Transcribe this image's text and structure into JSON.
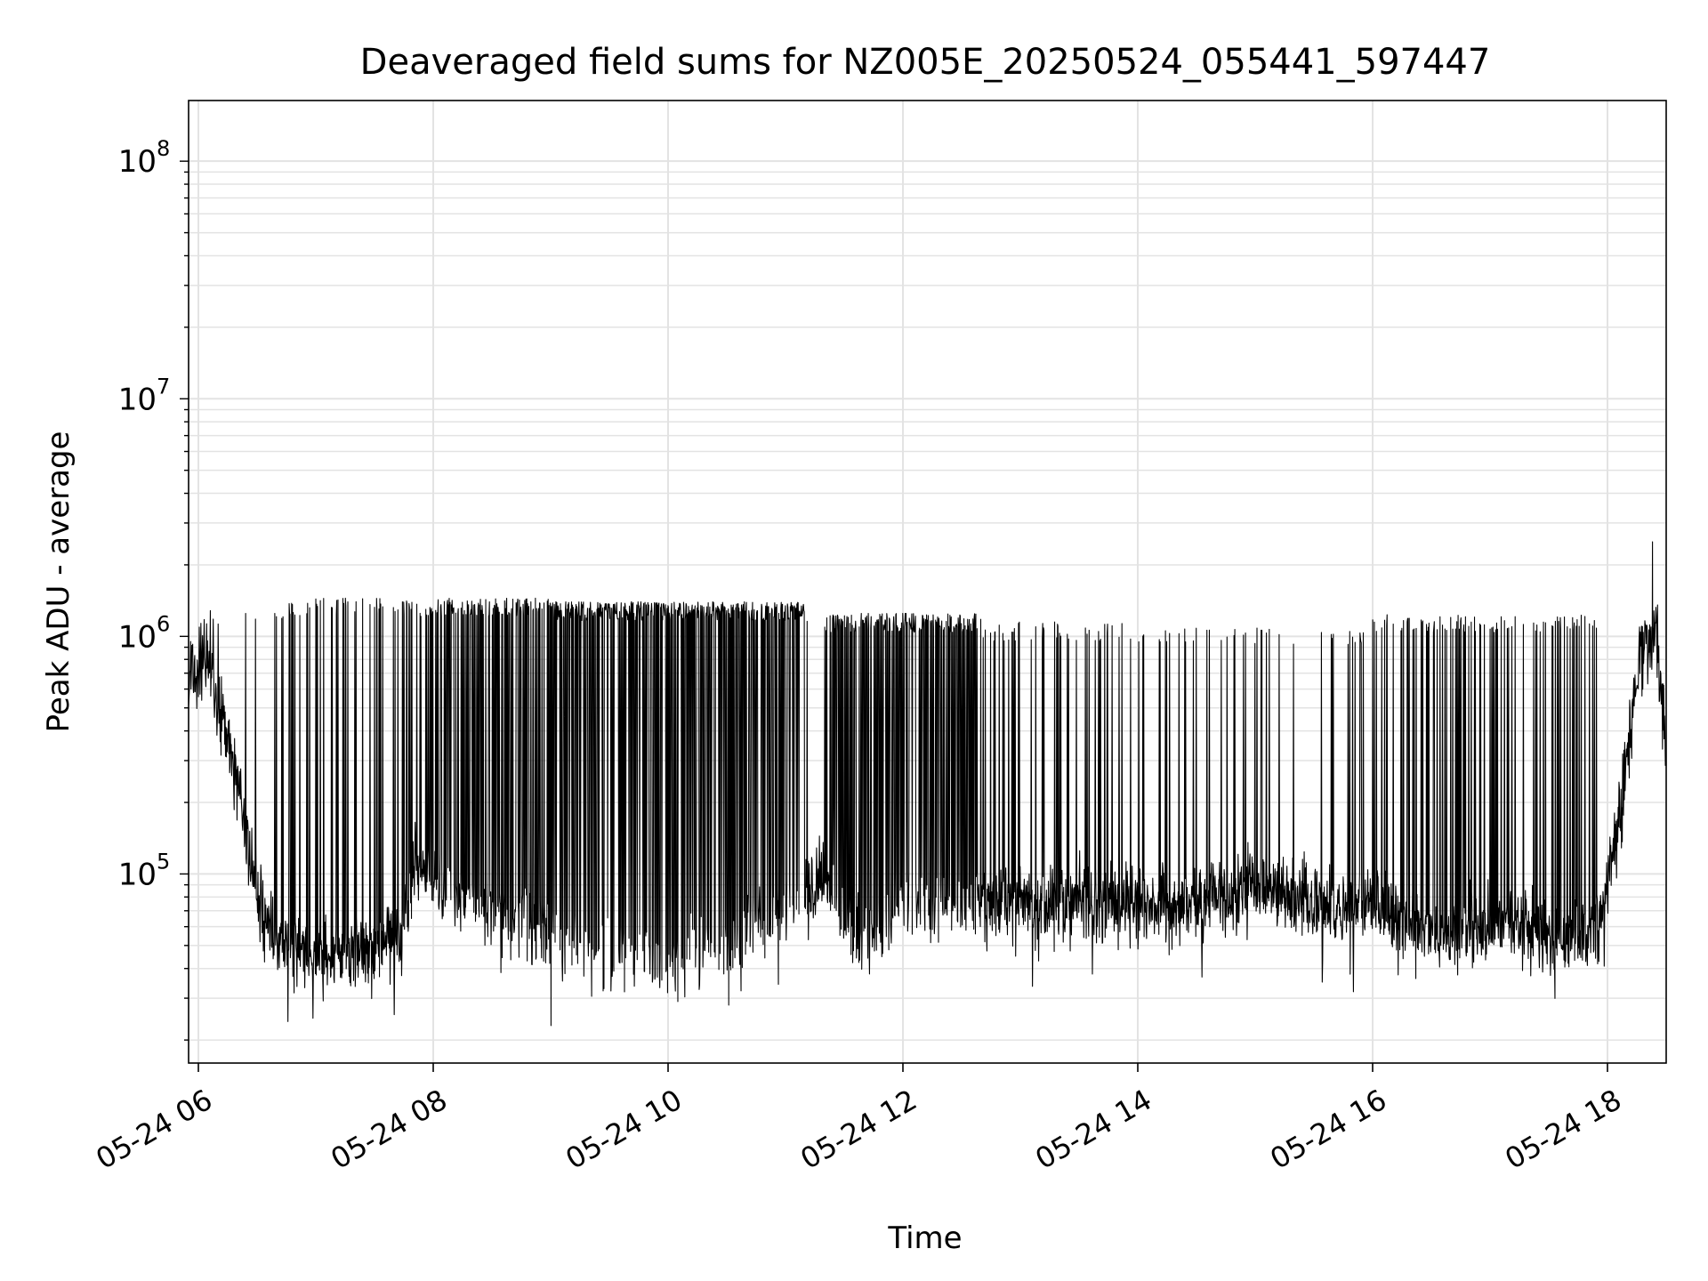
{
  "chart_data": {
    "type": "line",
    "title": "Deaveraged field sums for NZ005E_20250524_055441_597447",
    "xlabel": "Time",
    "ylabel": "Peak ADU - average",
    "yscale": "log",
    "ylim": [
      16000,
      180000000
    ],
    "xlim": [
      "2025-05-24 05:55",
      "2025-05-24 18:30"
    ],
    "x_ticks": [
      "05-24 06",
      "05-24 08",
      "05-24 10",
      "05-24 12",
      "05-24 14",
      "05-24 16",
      "05-24 18"
    ],
    "y_ticks": [
      {
        "value": 100000,
        "base": "10",
        "exp": "5"
      },
      {
        "value": 1000000,
        "base": "10",
        "exp": "6"
      },
      {
        "value": 10000000,
        "base": "10",
        "exp": "7"
      },
      {
        "value": 100000000,
        "base": "10",
        "exp": "8"
      }
    ],
    "grid": true,
    "line_color": "#000000",
    "series": [
      {
        "baseline": [
          {
            "x": "2025-05-24 05:55",
            "y": 700000
          },
          {
            "x": "2025-05-24 06:05",
            "y": 800000
          },
          {
            "x": "2025-05-24 06:10",
            "y": 500000
          },
          {
            "x": "2025-05-24 06:20",
            "y": 250000
          },
          {
            "x": "2025-05-24 06:30",
            "y": 80000
          },
          {
            "x": "2025-05-24 06:40",
            "y": 50000
          },
          {
            "x": "2025-05-24 07:00",
            "y": 45000
          },
          {
            "x": "2025-05-24 07:30",
            "y": 45000
          },
          {
            "x": "2025-05-24 07:45",
            "y": 60000
          },
          {
            "x": "2025-05-24 07:50",
            "y": 110000
          },
          {
            "x": "2025-05-24 08:00",
            "y": 90000
          },
          {
            "x": "2025-05-24 08:30",
            "y": 70000
          },
          {
            "x": "2025-05-24 09:00",
            "y": 55000
          },
          {
            "x": "2025-05-24 09:30",
            "y": 45000
          },
          {
            "x": "2025-05-24 10:00",
            "y": 42000
          },
          {
            "x": "2025-05-24 10:30",
            "y": 50000
          },
          {
            "x": "2025-05-24 11:00",
            "y": 70000
          },
          {
            "x": "2025-05-24 11:20",
            "y": 100000
          },
          {
            "x": "2025-05-24 11:30",
            "y": 60000
          },
          {
            "x": "2025-05-24 11:45",
            "y": 55000
          },
          {
            "x": "2025-05-24 12:00",
            "y": 70000
          },
          {
            "x": "2025-05-24 12:30",
            "y": 80000
          },
          {
            "x": "2025-05-24 13:00",
            "y": 75000
          },
          {
            "x": "2025-05-24 14:00",
            "y": 75000
          },
          {
            "x": "2025-05-24 14:40",
            "y": 75000
          },
          {
            "x": "2025-05-24 15:00",
            "y": 90000
          },
          {
            "x": "2025-05-24 15:20",
            "y": 80000
          },
          {
            "x": "2025-05-24 15:40",
            "y": 70000
          },
          {
            "x": "2025-05-24 16:00",
            "y": 75000
          },
          {
            "x": "2025-05-24 16:30",
            "y": 55000
          },
          {
            "x": "2025-05-24 17:00",
            "y": 60000
          },
          {
            "x": "2025-05-24 17:30",
            "y": 55000
          },
          {
            "x": "2025-05-24 17:55",
            "y": 55000
          },
          {
            "x": "2025-05-24 18:05",
            "y": 150000
          },
          {
            "x": "2025-05-24 18:15",
            "y": 700000
          },
          {
            "x": "2025-05-24 18:25",
            "y": 1100000
          },
          {
            "x": "2025-05-24 18:30",
            "y": 300000
          }
        ],
        "spike_density": [
          {
            "from": "2025-05-24 06:00",
            "to": "2025-05-24 06:45",
            "level": 0.05,
            "peak": 1300000
          },
          {
            "from": "2025-05-24 06:45",
            "to": "2025-05-24 07:45",
            "level": 0.15,
            "peak": 1450000
          },
          {
            "from": "2025-05-24 07:45",
            "to": "2025-05-24 09:00",
            "level": 0.4,
            "peak": 1450000
          },
          {
            "from": "2025-05-24 09:00",
            "to": "2025-05-24 11:10",
            "level": 0.65,
            "peak": 1400000
          },
          {
            "from": "2025-05-24 11:10",
            "to": "2025-05-24 11:20",
            "level": 0.05,
            "peak": 1200000
          },
          {
            "from": "2025-05-24 11:20",
            "to": "2025-05-24 12:40",
            "level": 0.45,
            "peak": 1250000
          },
          {
            "from": "2025-05-24 12:40",
            "to": "2025-05-24 14:00",
            "level": 0.12,
            "peak": 1150000
          },
          {
            "from": "2025-05-24 14:00",
            "to": "2025-05-24 16:00",
            "level": 0.07,
            "peak": 1100000
          },
          {
            "from": "2025-05-24 16:00",
            "to": "2025-05-24 17:55",
            "level": 0.15,
            "peak": 1250000
          },
          {
            "from": "2025-05-24 17:55",
            "to": "2025-05-24 18:30",
            "level": 0.0,
            "peak": 1000000
          }
        ],
        "max_point": {
          "x": "2025-05-24 18:23",
          "y": 2500000
        },
        "min_point": {
          "x": "2025-05-24 09:00",
          "y": 23000
        }
      }
    ]
  }
}
